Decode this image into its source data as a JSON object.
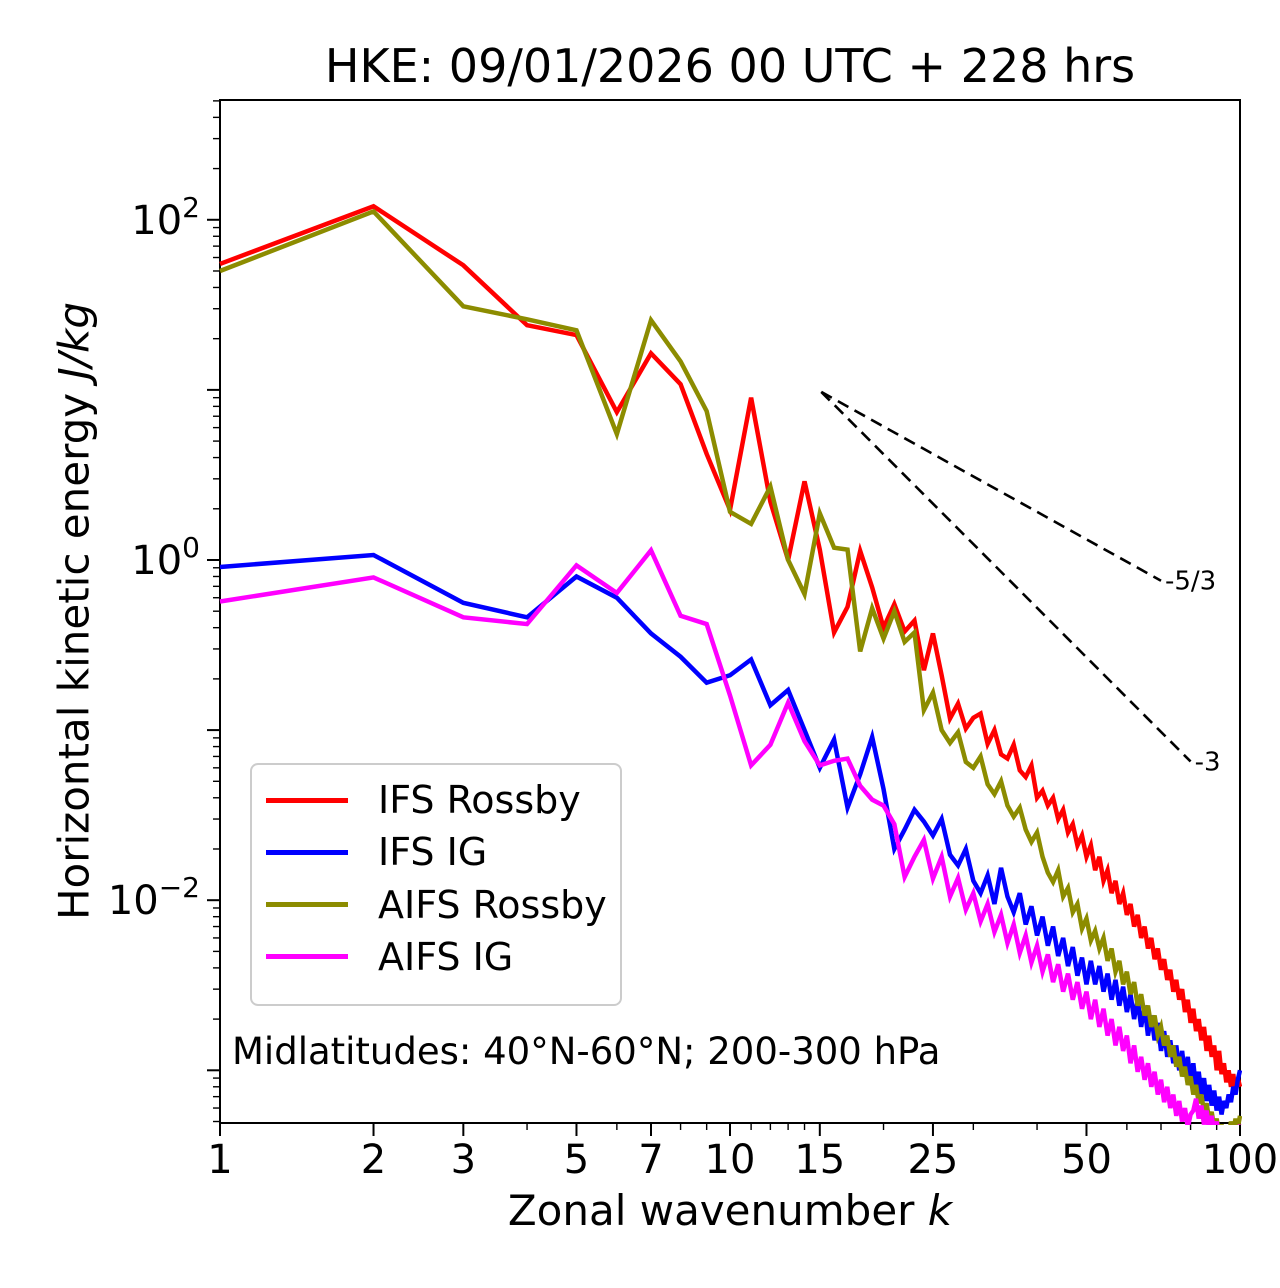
{
  "chart_data": {
    "type": "line",
    "title": "HKE: 09/01/2026 00 UTC + 228 hrs",
    "xlabel": "Zonal wavenumber k",
    "xlabel_prefix": "Zonal wavenumber ",
    "xlabel_math": "k",
    "ylabel": "Horizontal kinetic energy J/kg",
    "ylabel_prefix": "Horizontal kinetic energy ",
    "ylabel_math": "J/kg",
    "annotation": "Midlatitudes: 40°N-60°N; 200-300 hPa",
    "x_scale": "log",
    "y_scale": "log",
    "xlim": [
      1,
      100
    ],
    "ylim": [
      0.00049,
      506
    ],
    "grid": false,
    "legend_position": "lower left",
    "x_major_ticks": [
      1,
      2,
      3,
      5,
      7,
      10,
      15,
      25,
      50,
      100
    ],
    "x_minor_ticks": [
      4,
      6,
      8,
      9,
      11,
      12,
      13,
      14,
      20,
      30,
      40,
      60,
      70,
      80,
      90
    ],
    "y_major_tick_exponents": [
      2,
      1,
      0,
      -1,
      -2,
      -3
    ],
    "y_labeled_tick_exponents": [
      2,
      0,
      -2
    ],
    "y_tick_labels": [
      "10²",
      "10⁰",
      "10⁻²"
    ],
    "x": [
      1,
      2,
      3,
      4,
      5,
      6,
      7,
      8,
      9,
      10,
      11,
      12,
      13,
      14,
      15,
      16,
      17,
      18,
      19,
      20,
      21,
      22,
      23,
      24,
      25,
      26,
      27,
      28,
      29,
      30,
      31,
      32,
      33,
      34,
      35,
      36,
      37,
      38,
      39,
      40,
      41,
      42,
      43,
      44,
      45,
      46,
      47,
      48,
      49,
      50,
      51,
      52,
      53,
      54,
      55,
      56,
      57,
      58,
      59,
      60,
      61,
      62,
      63,
      64,
      65,
      66,
      67,
      68,
      69,
      70,
      71,
      72,
      73,
      74,
      75,
      76,
      77,
      78,
      79,
      80,
      81,
      82,
      83,
      84,
      85,
      86,
      87,
      88,
      89,
      90,
      91,
      92,
      93,
      94,
      95,
      96,
      97,
      98,
      99,
      100
    ],
    "series": [
      {
        "name": "IFS Rossby",
        "color": "#ff0000",
        "values": [
          55,
          120,
          54,
          24,
          21,
          7.4,
          16.4,
          10.8,
          4.2,
          1.97,
          9.0,
          2.2,
          1.0,
          2.9,
          1.15,
          0.375,
          0.53,
          1.13,
          0.69,
          0.4,
          0.55,
          0.38,
          0.44,
          0.225,
          0.37,
          0.21,
          0.117,
          0.143,
          0.102,
          0.118,
          0.125,
          0.083,
          0.1,
          0.072,
          0.068,
          0.082,
          0.058,
          0.053,
          0.062,
          0.04,
          0.044,
          0.036,
          0.04,
          0.03,
          0.034,
          0.025,
          0.028,
          0.021,
          0.024,
          0.018,
          0.021,
          0.015,
          0.018,
          0.013,
          0.015,
          0.011,
          0.013,
          0.0095,
          0.011,
          0.0082,
          0.0095,
          0.007,
          0.0082,
          0.006,
          0.007,
          0.0052,
          0.006,
          0.0045,
          0.0052,
          0.0039,
          0.0045,
          0.0034,
          0.0039,
          0.0029,
          0.0034,
          0.0026,
          0.003,
          0.0022,
          0.0026,
          0.0019,
          0.0023,
          0.0017,
          0.002,
          0.0015,
          0.0018,
          0.0013,
          0.0016,
          0.0012,
          0.0014,
          0.001,
          0.0013,
          0.00095,
          0.0011,
          0.00085,
          0.001,
          0.0008,
          0.00095,
          0.00075,
          0.0009,
          0.0008
        ]
      },
      {
        "name": "IFS IG",
        "color": "#0000ff",
        "values": [
          0.91,
          1.07,
          0.56,
          0.46,
          0.8,
          0.6,
          0.37,
          0.27,
          0.19,
          0.21,
          0.26,
          0.14,
          0.172,
          0.1,
          0.06,
          0.088,
          0.035,
          0.055,
          0.091,
          0.045,
          0.02,
          0.026,
          0.034,
          0.029,
          0.024,
          0.03,
          0.0185,
          0.016,
          0.02,
          0.013,
          0.011,
          0.014,
          0.0095,
          0.0155,
          0.0105,
          0.0085,
          0.011,
          0.0072,
          0.0092,
          0.0062,
          0.008,
          0.0054,
          0.007,
          0.0047,
          0.006,
          0.0041,
          0.0053,
          0.0036,
          0.0046,
          0.0032,
          0.0044,
          0.0032,
          0.0041,
          0.0029,
          0.0037,
          0.0026,
          0.0034,
          0.0024,
          0.0031,
          0.0022,
          0.0028,
          0.002,
          0.0026,
          0.0018,
          0.0024,
          0.0016,
          0.0021,
          0.0015,
          0.0019,
          0.0013,
          0.0017,
          0.0012,
          0.0015,
          0.0011,
          0.0014,
          0.001,
          0.0013,
          0.00092,
          0.0012,
          0.00085,
          0.0011,
          0.00078,
          0.00098,
          0.00072,
          0.0009,
          0.00066,
          0.00082,
          0.00062,
          0.00076,
          0.00058,
          0.0007,
          0.00055,
          0.00066,
          0.0006,
          0.00072,
          0.00065,
          0.0008,
          0.00072,
          0.00088,
          0.001
        ]
      },
      {
        "name": "AIFS Rossby",
        "color": "#8c8c00",
        "values": [
          50,
          112,
          31,
          26,
          22.4,
          5.5,
          25.7,
          14.7,
          7.5,
          1.92,
          1.63,
          2.7,
          1.0,
          0.63,
          1.88,
          1.18,
          1.15,
          0.29,
          0.52,
          0.345,
          0.5,
          0.33,
          0.375,
          0.131,
          0.166,
          0.1,
          0.084,
          0.097,
          0.065,
          0.06,
          0.07,
          0.048,
          0.042,
          0.05,
          0.036,
          0.031,
          0.035,
          0.026,
          0.022,
          0.025,
          0.018,
          0.0145,
          0.0128,
          0.015,
          0.0105,
          0.0118,
          0.0085,
          0.0095,
          0.0068,
          0.0078,
          0.0058,
          0.0066,
          0.0052,
          0.006,
          0.0044,
          0.0052,
          0.0038,
          0.0044,
          0.0032,
          0.0038,
          0.0028,
          0.0033,
          0.0024,
          0.0028,
          0.0021,
          0.0024,
          0.0018,
          0.0021,
          0.0016,
          0.0018,
          0.0014,
          0.0016,
          0.0012,
          0.0014,
          0.00105,
          0.0012,
          0.00092,
          0.00105,
          0.00082,
          0.00092,
          0.00072,
          0.00082,
          0.00064,
          0.00072,
          0.00057,
          0.00064,
          0.00051,
          0.00057,
          0.00046,
          0.00052,
          0.00042,
          0.00048,
          0.0004,
          0.00046,
          0.0004,
          0.0005,
          0.00044,
          0.00052,
          0.00046,
          0.00054
        ]
      },
      {
        "name": "AIFS IG",
        "color": "#ff00ff",
        "values": [
          0.57,
          0.79,
          0.46,
          0.42,
          0.93,
          0.64,
          1.14,
          0.47,
          0.42,
          0.16,
          0.062,
          0.082,
          0.145,
          0.086,
          0.062,
          0.066,
          0.068,
          0.047,
          0.039,
          0.036,
          0.028,
          0.0137,
          0.018,
          0.0226,
          0.0134,
          0.018,
          0.0105,
          0.0135,
          0.0088,
          0.011,
          0.0075,
          0.0095,
          0.0065,
          0.0082,
          0.0056,
          0.0072,
          0.0049,
          0.0062,
          0.0043,
          0.0054,
          0.0038,
          0.0048,
          0.0033,
          0.0042,
          0.0029,
          0.0037,
          0.0026,
          0.0033,
          0.0023,
          0.0029,
          0.002,
          0.0026,
          0.0018,
          0.0023,
          0.0016,
          0.002,
          0.0014,
          0.0018,
          0.0013,
          0.0016,
          0.0011,
          0.0014,
          0.00098,
          0.0012,
          0.00088,
          0.0011,
          0.0008,
          0.00098,
          0.00072,
          0.00088,
          0.00065,
          0.0008,
          0.0006,
          0.00072,
          0.00054,
          0.00066,
          0.0005,
          0.0006,
          0.00046,
          0.00055,
          0.00058,
          0.00068,
          0.00052,
          0.00062,
          0.00048,
          0.00058,
          0.00045,
          0.00054,
          0.00042,
          0.0005,
          0.0004,
          0.00047,
          0.00038,
          0.00045,
          0.00037,
          0.00044,
          0.00038,
          0.00046,
          0.0004,
          0.00048
        ]
      }
    ],
    "reference_lines": [
      {
        "label": "-5/3",
        "style": "dashed",
        "color": "#000000",
        "x": [
          15.1,
          70
        ],
        "y": [
          9.73,
          0.755
        ]
      },
      {
        "label": "-3",
        "style": "dashed",
        "color": "#000000",
        "x": [
          15.1,
          80
        ],
        "y": [
          9.73,
          0.0654
        ]
      }
    ]
  }
}
